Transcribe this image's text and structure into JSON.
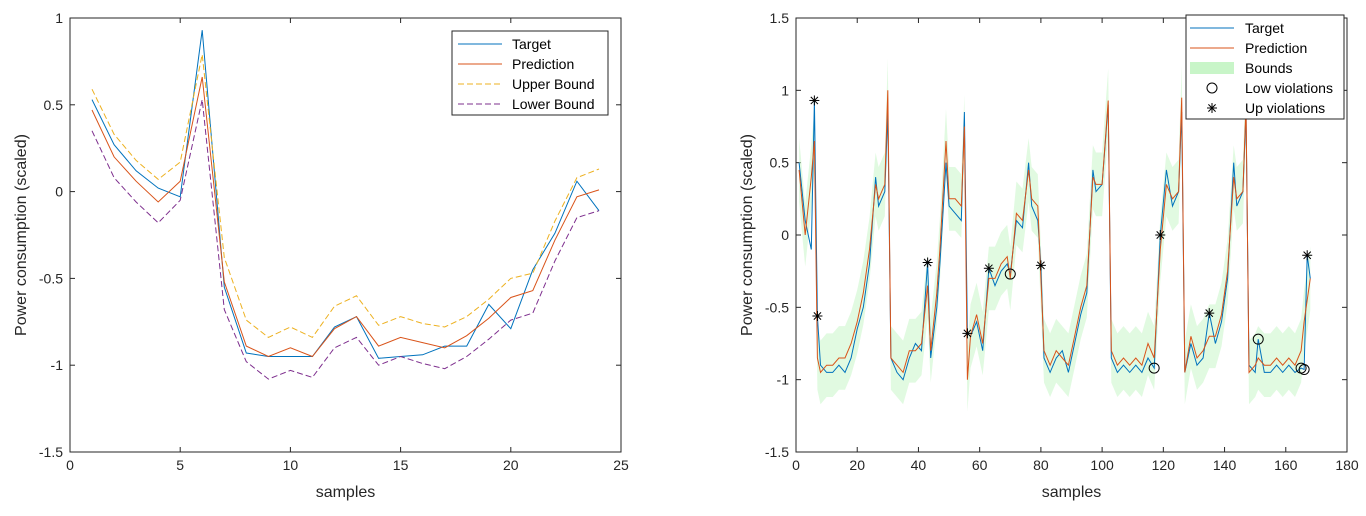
{
  "chart_data": [
    {
      "type": "line",
      "xlabel": "samples",
      "ylabel": "Power consumption (scaled)",
      "xlim": [
        0,
        25
      ],
      "ylim": [
        -1.5,
        1
      ],
      "xticks": [
        "0",
        "5",
        "10",
        "15",
        "20",
        "25"
      ],
      "yticks": [
        "-1.5",
        "-1",
        "-0.5",
        "0",
        "0.5",
        "1"
      ],
      "legend_position": "top-right",
      "x": [
        1,
        2,
        3,
        4,
        5,
        6,
        7,
        8,
        9,
        10,
        11,
        12,
        13,
        14,
        15,
        16,
        17,
        18,
        19,
        20,
        21,
        22,
        23,
        24
      ],
      "series": [
        {
          "name": "Target",
          "color": "#0072BD",
          "style": "solid",
          "values": [
            0.53,
            0.27,
            0.12,
            0.02,
            -0.03,
            0.93,
            -0.55,
            -0.93,
            -0.95,
            -0.95,
            -0.95,
            -0.78,
            -0.72,
            -0.96,
            -0.95,
            -0.94,
            -0.89,
            -0.89,
            -0.65,
            -0.79,
            -0.45,
            -0.24,
            0.06,
            -0.11
          ]
        },
        {
          "name": "Prediction",
          "color": "#D95319",
          "style": "solid",
          "values": [
            0.47,
            0.2,
            0.06,
            -0.06,
            0.06,
            0.66,
            -0.52,
            -0.89,
            -0.95,
            -0.9,
            -0.95,
            -0.79,
            -0.72,
            -0.89,
            -0.84,
            -0.87,
            -0.9,
            -0.83,
            -0.73,
            -0.61,
            -0.57,
            -0.28,
            -0.03,
            0.01
          ]
        },
        {
          "name": "Upper Bound",
          "color": "#EDB120",
          "style": "dashed",
          "values": [
            0.59,
            0.33,
            0.18,
            0.07,
            0.17,
            0.79,
            -0.38,
            -0.74,
            -0.84,
            -0.78,
            -0.84,
            -0.66,
            -0.6,
            -0.77,
            -0.72,
            -0.76,
            -0.78,
            -0.72,
            -0.62,
            -0.5,
            -0.47,
            -0.17,
            0.08,
            0.13
          ]
        },
        {
          "name": "Lower Bound",
          "color": "#7E2F8E",
          "style": "dashed",
          "values": [
            0.35,
            0.08,
            -0.06,
            -0.18,
            -0.05,
            0.53,
            -0.68,
            -0.98,
            -1.08,
            -1.03,
            -1.07,
            -0.9,
            -0.84,
            -1.0,
            -0.95,
            -0.99,
            -1.02,
            -0.95,
            -0.85,
            -0.74,
            -0.7,
            -0.4,
            -0.15,
            -0.11
          ]
        }
      ]
    },
    {
      "type": "line",
      "xlabel": "samples",
      "ylabel": "Power consumption (scaled)",
      "xlim": [
        0,
        180
      ],
      "ylim": [
        -1.5,
        1.5
      ],
      "xticks": [
        "0",
        "20",
        "40",
        "60",
        "80",
        "100",
        "120",
        "140",
        "160",
        "180"
      ],
      "yticks": [
        "-1.5",
        "-1",
        "-0.5",
        "0",
        "0.5",
        "1",
        "1.5"
      ],
      "legend_position": "top-right",
      "legend": [
        {
          "name": "Target",
          "kind": "line",
          "color": "#0072BD"
        },
        {
          "name": "Prediction",
          "kind": "line",
          "color": "#D95319"
        },
        {
          "name": "Bounds",
          "kind": "patch",
          "color": "#C8F5C8"
        },
        {
          "name": "Low violations",
          "kind": "circle",
          "color": "#000000"
        },
        {
          "name": "Up violations",
          "kind": "star",
          "color": "#000000"
        }
      ],
      "target": [
        [
          1,
          0.5
        ],
        [
          3,
          0.1
        ],
        [
          5,
          -0.1
        ],
        [
          6,
          0.93
        ],
        [
          7,
          -0.56
        ],
        [
          8,
          -0.9
        ],
        [
          10,
          -0.95
        ],
        [
          12,
          -0.95
        ],
        [
          14,
          -0.9
        ],
        [
          16,
          -0.95
        ],
        [
          18,
          -0.85
        ],
        [
          20,
          -0.65
        ],
        [
          22,
          -0.5
        ],
        [
          24,
          -0.2
        ],
        [
          26,
          0.4
        ],
        [
          27,
          0.2
        ],
        [
          29,
          0.3
        ],
        [
          30,
          0.85
        ],
        [
          31,
          -0.85
        ],
        [
          33,
          -0.95
        ],
        [
          35,
          -1.0
        ],
        [
          37,
          -0.85
        ],
        [
          39,
          -0.75
        ],
        [
          41,
          -0.8
        ],
        [
          43,
          -0.19
        ],
        [
          44,
          -0.85
        ],
        [
          46,
          -0.5
        ],
        [
          47,
          -0.2
        ],
        [
          49,
          0.5
        ],
        [
          50,
          0.2
        ],
        [
          52,
          0.15
        ],
        [
          54,
          0.1
        ],
        [
          55,
          0.85
        ],
        [
          56,
          -0.68
        ],
        [
          57,
          -0.7
        ],
        [
          59,
          -0.6
        ],
        [
          61,
          -0.8
        ],
        [
          63,
          -0.23
        ],
        [
          65,
          -0.35
        ],
        [
          67,
          -0.25
        ],
        [
          69,
          -0.2
        ],
        [
          70,
          -0.27
        ],
        [
          72,
          0.1
        ],
        [
          74,
          0.05
        ],
        [
          76,
          0.5
        ],
        [
          77,
          0.2
        ],
        [
          79,
          0.1
        ],
        [
          80,
          -0.21
        ],
        [
          81,
          -0.85
        ],
        [
          83,
          -0.95
        ],
        [
          85,
          -0.85
        ],
        [
          87,
          -0.8
        ],
        [
          89,
          -0.95
        ],
        [
          91,
          -0.75
        ],
        [
          93,
          -0.55
        ],
        [
          95,
          -0.4
        ],
        [
          97,
          0.45
        ],
        [
          98,
          0.3
        ],
        [
          100,
          0.35
        ],
        [
          102,
          0.9
        ],
        [
          103,
          -0.85
        ],
        [
          105,
          -0.95
        ],
        [
          107,
          -0.9
        ],
        [
          109,
          -0.95
        ],
        [
          111,
          -0.9
        ],
        [
          113,
          -0.95
        ],
        [
          115,
          -0.85
        ],
        [
          117,
          -0.92
        ],
        [
          119,
          0.0
        ],
        [
          121,
          0.45
        ],
        [
          123,
          0.2
        ],
        [
          125,
          0.3
        ],
        [
          126,
          0.85
        ],
        [
          127,
          -0.95
        ],
        [
          129,
          -0.75
        ],
        [
          131,
          -0.9
        ],
        [
          133,
          -0.85
        ],
        [
          135,
          -0.54
        ],
        [
          137,
          -0.75
        ],
        [
          139,
          -0.6
        ],
        [
          141,
          -0.3
        ],
        [
          143,
          0.5
        ],
        [
          144,
          0.2
        ],
        [
          146,
          0.3
        ],
        [
          147,
          0.85
        ],
        [
          148,
          -0.9
        ],
        [
          150,
          -0.95
        ],
        [
          151,
          -0.72
        ],
        [
          153,
          -0.95
        ],
        [
          155,
          -0.95
        ],
        [
          157,
          -0.9
        ],
        [
          159,
          -0.95
        ],
        [
          161,
          -0.9
        ],
        [
          163,
          -0.95
        ],
        [
          165,
          -0.92
        ],
        [
          166,
          -0.93
        ],
        [
          167,
          -0.14
        ],
        [
          168,
          -0.3
        ]
      ],
      "prediction": [
        [
          1,
          0.45
        ],
        [
          3,
          0.0
        ],
        [
          5,
          0.4
        ],
        [
          6,
          0.65
        ],
        [
          7,
          -0.85
        ],
        [
          8,
          -0.95
        ],
        [
          10,
          -0.9
        ],
        [
          12,
          -0.9
        ],
        [
          14,
          -0.85
        ],
        [
          16,
          -0.85
        ],
        [
          18,
          -0.75
        ],
        [
          20,
          -0.6
        ],
        [
          22,
          -0.4
        ],
        [
          24,
          -0.1
        ],
        [
          26,
          0.35
        ],
        [
          27,
          0.25
        ],
        [
          29,
          0.35
        ],
        [
          30,
          1.0
        ],
        [
          31,
          -0.85
        ],
        [
          33,
          -0.9
        ],
        [
          35,
          -0.95
        ],
        [
          37,
          -0.8
        ],
        [
          39,
          -0.8
        ],
        [
          41,
          -0.75
        ],
        [
          43,
          -0.35
        ],
        [
          44,
          -0.8
        ],
        [
          46,
          -0.4
        ],
        [
          47,
          -0.1
        ],
        [
          49,
          0.65
        ],
        [
          50,
          0.25
        ],
        [
          52,
          0.25
        ],
        [
          54,
          0.2
        ],
        [
          55,
          0.75
        ],
        [
          56,
          -1.0
        ],
        [
          57,
          -0.7
        ],
        [
          59,
          -0.55
        ],
        [
          61,
          -0.75
        ],
        [
          63,
          -0.3
        ],
        [
          65,
          -0.3
        ],
        [
          67,
          -0.2
        ],
        [
          69,
          -0.15
        ],
        [
          70,
          -0.3
        ],
        [
          72,
          0.15
        ],
        [
          74,
          0.1
        ],
        [
          76,
          0.45
        ],
        [
          77,
          0.25
        ],
        [
          79,
          0.2
        ],
        [
          80,
          -0.3
        ],
        [
          81,
          -0.8
        ],
        [
          83,
          -0.9
        ],
        [
          85,
          -0.8
        ],
        [
          87,
          -0.85
        ],
        [
          89,
          -0.9
        ],
        [
          91,
          -0.7
        ],
        [
          93,
          -0.5
        ],
        [
          95,
          -0.35
        ],
        [
          97,
          0.4
        ],
        [
          98,
          0.35
        ],
        [
          100,
          0.35
        ],
        [
          102,
          0.93
        ],
        [
          103,
          -0.8
        ],
        [
          105,
          -0.9
        ],
        [
          107,
          -0.85
        ],
        [
          109,
          -0.9
        ],
        [
          111,
          -0.85
        ],
        [
          113,
          -0.9
        ],
        [
          115,
          -0.75
        ],
        [
          117,
          -0.85
        ],
        [
          119,
          -0.1
        ],
        [
          121,
          0.35
        ],
        [
          123,
          0.25
        ],
        [
          125,
          0.3
        ],
        [
          126,
          0.95
        ],
        [
          127,
          -0.95
        ],
        [
          129,
          -0.7
        ],
        [
          131,
          -0.85
        ],
        [
          133,
          -0.8
        ],
        [
          135,
          -0.7
        ],
        [
          137,
          -0.7
        ],
        [
          139,
          -0.55
        ],
        [
          141,
          -0.25
        ],
        [
          143,
          0.4
        ],
        [
          144,
          0.25
        ],
        [
          146,
          0.3
        ],
        [
          147,
          0.9
        ],
        [
          148,
          -0.95
        ],
        [
          150,
          -0.9
        ],
        [
          151,
          -0.85
        ],
        [
          153,
          -0.9
        ],
        [
          155,
          -0.9
        ],
        [
          157,
          -0.85
        ],
        [
          159,
          -0.9
        ],
        [
          161,
          -0.85
        ],
        [
          163,
          -0.9
        ],
        [
          165,
          -0.8
        ],
        [
          166,
          -0.6
        ],
        [
          167,
          -0.45
        ],
        [
          168,
          -0.3
        ]
      ],
      "bound_halfwidth": 0.22,
      "low_violations": [
        [
          70,
          -0.27
        ],
        [
          117,
          -0.92
        ],
        [
          151,
          -0.72
        ],
        [
          165,
          -0.92
        ],
        [
          166,
          -0.93
        ]
      ],
      "up_violations": [
        [
          6,
          0.93
        ],
        [
          7,
          -0.56
        ],
        [
          43,
          -0.19
        ],
        [
          56,
          -0.68
        ],
        [
          63,
          -0.23
        ],
        [
          80,
          -0.21
        ],
        [
          119,
          0.0
        ],
        [
          135,
          -0.54
        ],
        [
          167,
          -0.14
        ]
      ]
    }
  ]
}
